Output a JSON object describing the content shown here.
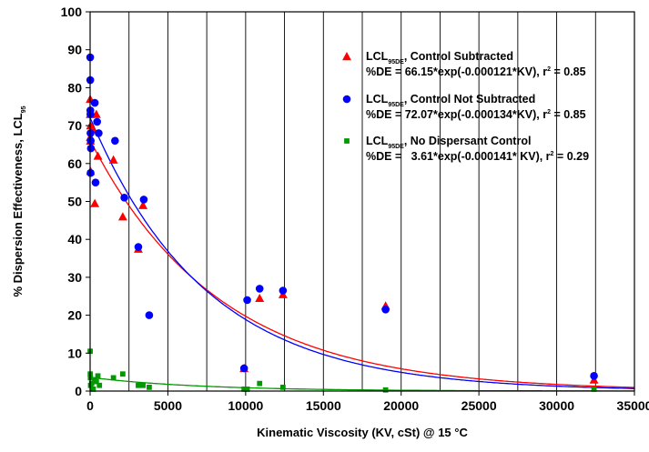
{
  "chart_data": {
    "type": "scatter",
    "title": "",
    "xlabel": "Kinematic Viscosity (KV, cSt) @ 15 °C",
    "ylabel": "% Dispersion Effectiveness, LCL",
    "ylabel_sub": "95",
    "xlim": [
      0,
      35000
    ],
    "ylim": [
      0,
      100
    ],
    "x_ticks": [
      0,
      5000,
      10000,
      15000,
      20000,
      25000,
      30000,
      35000
    ],
    "y_ticks": [
      0,
      10,
      20,
      30,
      40,
      50,
      60,
      70,
      80,
      90,
      100
    ],
    "grid": "vertical",
    "legend_position": "top-right",
    "series": [
      {
        "name": "LCL",
        "name_sub": "95DE",
        "name_suffix": ", Control Subtracted",
        "equation": "%DE = 66.15*exp(-0.000121*KV), r",
        "equation_sup": "2",
        "equation_end": " = 0.85",
        "marker": "triangle",
        "color": "#ff0000",
        "fit": {
          "a": 66.15,
          "b": -0.000121
        },
        "x": [
          5,
          10,
          15,
          20,
          25,
          30,
          200,
          300,
          400,
          500,
          1500,
          2100,
          3100,
          3400,
          9900,
          10900,
          12400,
          19000,
          32400
        ],
        "y": [
          77,
          73,
          67,
          66,
          70,
          58,
          69,
          49.5,
          73,
          62,
          61,
          46,
          37.5,
          49,
          6,
          24.5,
          25.5,
          22.5,
          3
        ]
      },
      {
        "name": "LCL",
        "name_sub": "95DE",
        "name_suffix": ", Control Not Subtracted",
        "equation": "%DE = 72.07*exp(-0.000134*KV), r",
        "equation_sup": "2",
        "equation_end": " = 0.85",
        "marker": "circle",
        "color": "#0000ff",
        "fit": {
          "a": 72.07,
          "b": -0.000134
        },
        "x": [
          5,
          10,
          15,
          20,
          25,
          30,
          40,
          50,
          300,
          350,
          450,
          550,
          1600,
          2200,
          3100,
          3450,
          3800,
          9900,
          10100,
          10900,
          12400,
          19000,
          32400
        ],
        "y": [
          88,
          82,
          74,
          73,
          68,
          57.5,
          66,
          64,
          76,
          55,
          71,
          68,
          66,
          51,
          38,
          50.5,
          20,
          6,
          24,
          27,
          26.5,
          21.5,
          4
        ]
      },
      {
        "name": "LCL",
        "name_sub": "95DE",
        "name_suffix": ", No Dispersant Control",
        "equation": "%DE =   3.61*exp(-0.000141* KV), r",
        "equation_sup": "2",
        "equation_end": " = 0.29",
        "marker": "square",
        "color": "#009900",
        "fit": {
          "a": 3.61,
          "b": -0.000141
        },
        "x": [
          5,
          10,
          20,
          30,
          100,
          200,
          300,
          400,
          500,
          600,
          1500,
          2100,
          3100,
          3400,
          3800,
          9900,
          10100,
          10900,
          12400,
          19000,
          32400
        ],
        "y": [
          10.5,
          4.5,
          3.5,
          1.5,
          2,
          0.5,
          3,
          2.5,
          4,
          1.5,
          3.5,
          4.5,
          1.5,
          1.5,
          1,
          0.5,
          0.5,
          2,
          1,
          0.3,
          0.5
        ]
      }
    ]
  }
}
